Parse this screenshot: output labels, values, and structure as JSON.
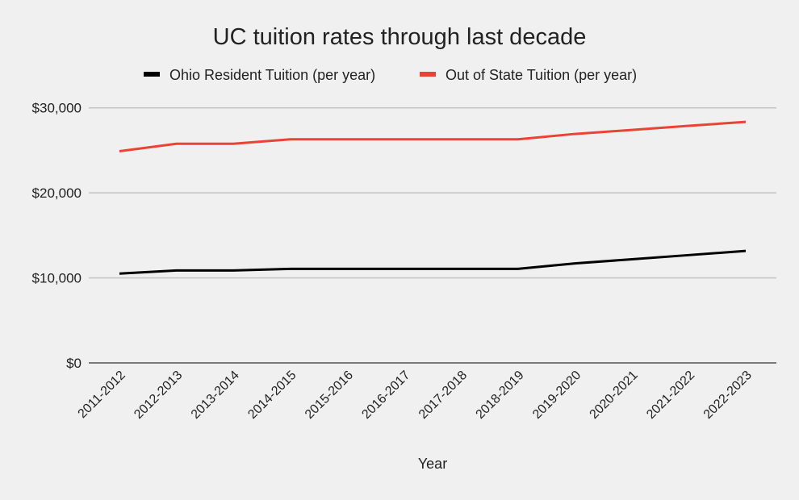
{
  "chart_data": {
    "type": "line",
    "title": "UC tuition rates through last decade",
    "xlabel": "Year",
    "ylabel": "",
    "ylim": [
      0,
      30000
    ],
    "yticks": [
      0,
      10000,
      20000,
      30000
    ],
    "ytick_labels": [
      "$0",
      "$10,000",
      "$20,000",
      "$30,000"
    ],
    "grid": true,
    "legend_position": "top",
    "categories": [
      "2011-2012",
      "2012-2013",
      "2013-2014",
      "2014-2015",
      "2015-2016",
      "2016-2017",
      "2017-2018",
      "2018-2019",
      "2019-2020",
      "2020-2021",
      "2021-2022",
      "2022-2023"
    ],
    "series": [
      {
        "name": "Ohio Resident Tuition (per year)",
        "color": "#000000",
        "values": [
          10500,
          10870,
          10870,
          11060,
          11060,
          11060,
          11060,
          11060,
          11700,
          12190,
          12680,
          13170
        ]
      },
      {
        "name": "Out of State Tuition (per year)",
        "color": "#ea4335",
        "values": [
          24900,
          25770,
          25770,
          26300,
          26300,
          26300,
          26300,
          26300,
          26930,
          27400,
          27880,
          28350
        ]
      }
    ]
  }
}
